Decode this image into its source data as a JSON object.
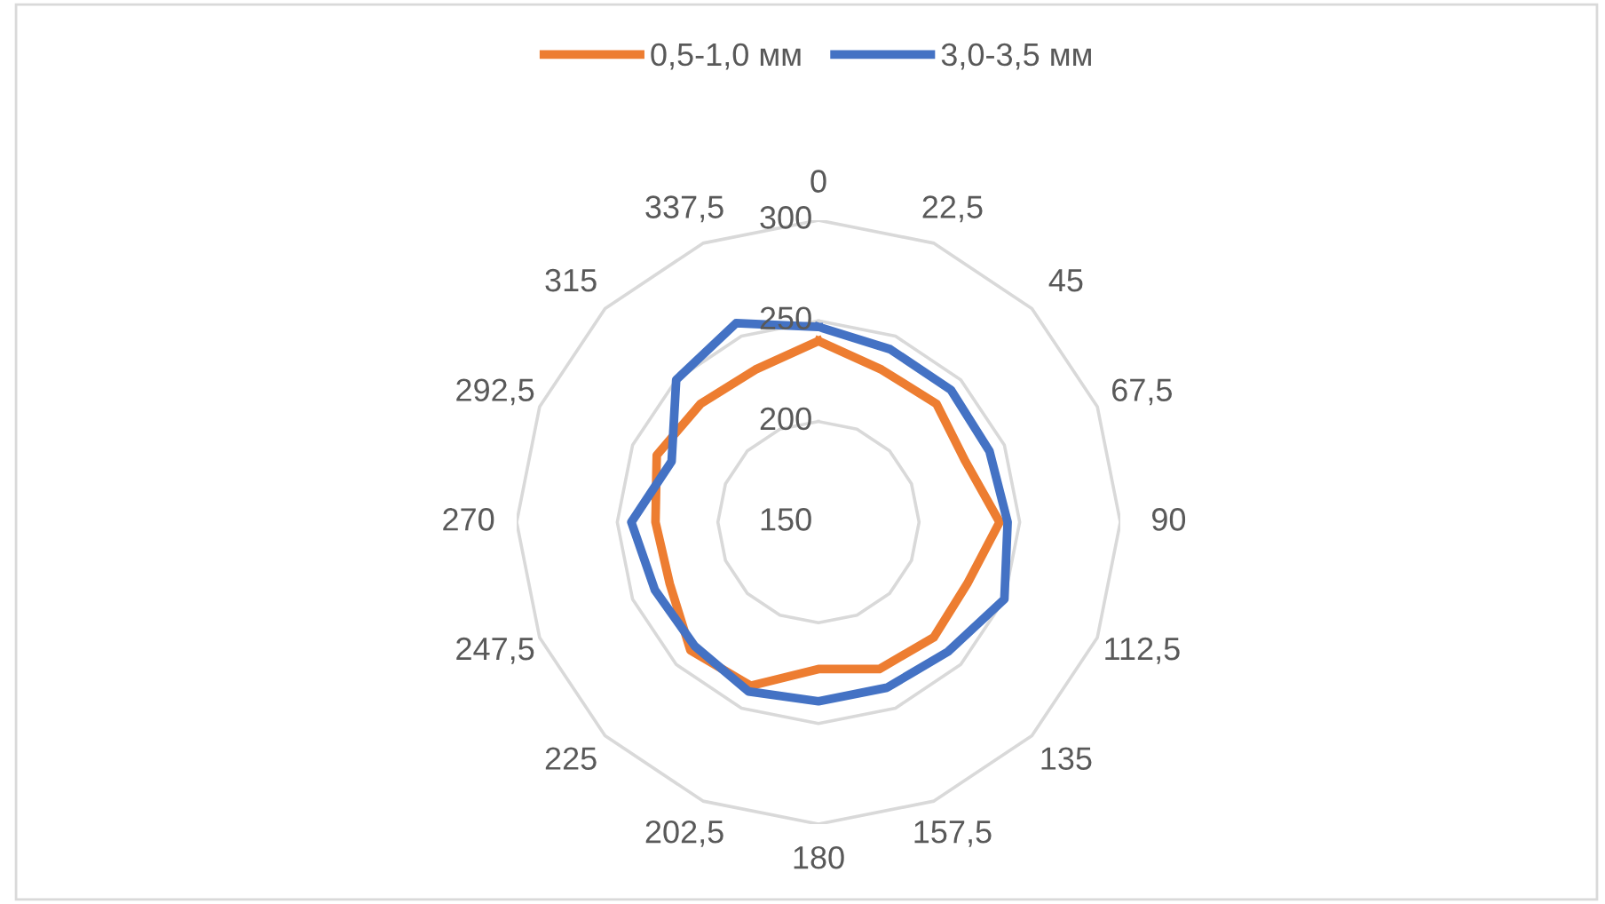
{
  "chart_data": {
    "type": "radar",
    "categories": [
      "0",
      "22,5",
      "45",
      "67,5",
      "90",
      "112,5",
      "135",
      "157,5",
      "180",
      "202,5",
      "225",
      "247,5",
      "270",
      "292,5",
      "315",
      "337,5"
    ],
    "ylim": [
      150,
      300
    ],
    "yticks": [
      150,
      200,
      250,
      300
    ],
    "grid": true,
    "legend": "top",
    "line_style": "solid",
    "marker": "none",
    "series": [
      {
        "name": "0,5-1,0 мм",
        "color": "#ed7d31",
        "values": [
          240,
          232,
          233,
          229,
          240,
          230,
          231,
          229,
          223,
          238,
          240,
          230,
          231,
          237,
          233,
          232
        ]
      },
      {
        "name": "3,0-3,5 мм",
        "color": "#4472c4",
        "values": [
          247,
          243,
          243,
          242,
          244,
          250,
          241,
          239,
          239,
          241,
          237,
          238,
          243,
          229,
          250,
          257
        ]
      }
    ]
  }
}
